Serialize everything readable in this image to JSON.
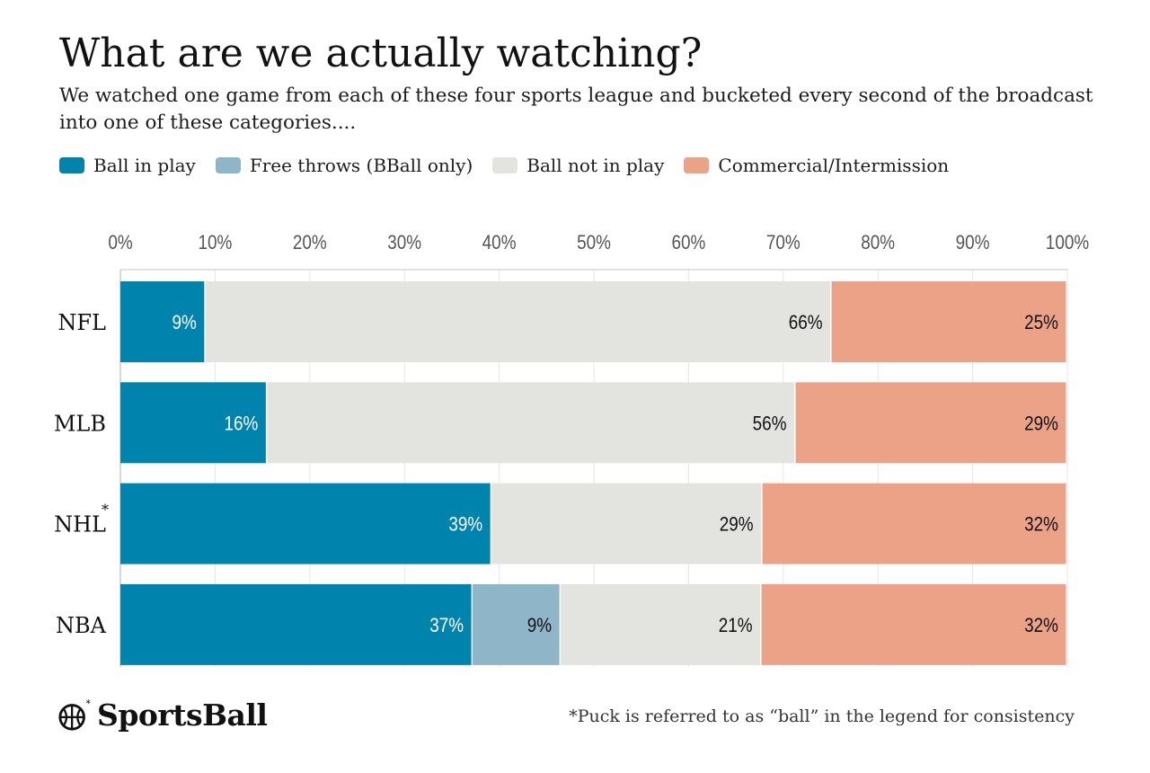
{
  "header": {
    "title": "What are we actually watching?",
    "subtitle": "We watched one game from each of these four sports league and bucketed every second of the broadcast into one of these categories...."
  },
  "legend": [
    {
      "label": "Ball in play",
      "color": "#0083ad"
    },
    {
      "label": "Free throws (BBall only)",
      "color": "#8fb6c8"
    },
    {
      "label": "Ball not in play",
      "color": "#e3e3e0"
    },
    {
      "label": "Commercial/Intermission",
      "color": "#eba287"
    }
  ],
  "chart_data": {
    "type": "bar",
    "orientation": "horizontal",
    "stacked": true,
    "categories": [
      "NFL",
      "MLB",
      "NHL",
      "NBA"
    ],
    "category_markers": {
      "NHL": "*"
    },
    "x_ticks": [
      "0%",
      "10%",
      "20%",
      "30%",
      "40%",
      "50%",
      "60%",
      "70%",
      "80%",
      "90%",
      "100%"
    ],
    "xlim": [
      0,
      100
    ],
    "series": [
      {
        "name": "Ball in play",
        "color": "#0083ad",
        "label_color": "#ffffff",
        "values": [
          9,
          15.5,
          39.2,
          37.2
        ],
        "labels": [
          "9%",
          "16%",
          "39%",
          "37%"
        ]
      },
      {
        "name": "Free throws (BBall only)",
        "color": "#8fb6c8",
        "label_color": "#111111",
        "values": [
          0,
          0,
          0,
          9.3
        ],
        "labels": [
          "",
          "",
          "",
          "9%"
        ]
      },
      {
        "name": "Ball not in play",
        "color": "#e3e3e0",
        "label_color": "#111111",
        "values": [
          66.1,
          55.8,
          28.6,
          21.2
        ],
        "labels": [
          "66%",
          "56%",
          "29%",
          "21%"
        ]
      },
      {
        "name": "Commercial/Intermission",
        "color": "#eba287",
        "label_color": "#111111",
        "values": [
          24.9,
          28.7,
          32.2,
          32.3
        ],
        "labels": [
          "25%",
          "29%",
          "32%",
          "32%"
        ]
      }
    ]
  },
  "footer": {
    "brand": "SportsBall",
    "footnote": "*Puck is referred to as “ball” in the legend for consistency"
  }
}
